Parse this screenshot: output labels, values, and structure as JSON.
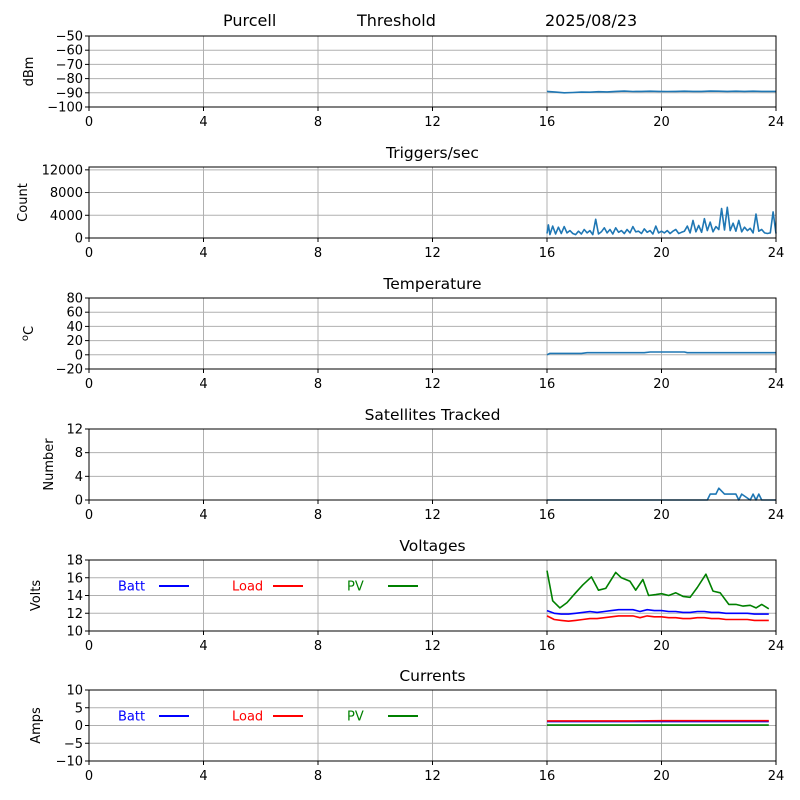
{
  "header": {
    "site": "Purcell",
    "label": "Threshold",
    "date": "2025/08/23"
  },
  "colors": {
    "default_series": "#1f77b4",
    "batt": "#0000ff",
    "load": "#ff0000",
    "pv": "#008000",
    "grid": "#b0b0b0"
  },
  "chart_data": [
    {
      "type": "line",
      "title": "",
      "xlabel": "",
      "ylabel": "dBm",
      "xlim": [
        0,
        24
      ],
      "xticks": [
        0,
        4,
        8,
        12,
        16,
        20,
        24
      ],
      "ylim": [
        -100,
        -50
      ],
      "yticks": [
        -100,
        -90,
        -80,
        -70,
        -60,
        -50
      ],
      "grid": true,
      "series": [
        {
          "color": "#1f77b4",
          "x": [
            16.0,
            16.3,
            16.6,
            16.9,
            17.2,
            17.5,
            17.8,
            18.1,
            18.4,
            18.7,
            19.0,
            19.3,
            19.6,
            19.9,
            20.2,
            20.5,
            20.8,
            21.1,
            21.4,
            21.7,
            22.0,
            22.3,
            22.6,
            22.9,
            23.2,
            23.5,
            23.8,
            24.0
          ],
          "y": [
            -89,
            -89.5,
            -90,
            -89.8,
            -89.5,
            -89.6,
            -89.2,
            -89.4,
            -89.0,
            -88.8,
            -89.1,
            -89.0,
            -88.9,
            -89.0,
            -89.1,
            -89.0,
            -88.9,
            -89.0,
            -89.0,
            -88.8,
            -88.9,
            -89.0,
            -88.9,
            -89.0,
            -88.9,
            -89.0,
            -89.0,
            -89.0
          ]
        }
      ]
    },
    {
      "type": "line",
      "title": "Triggers/sec",
      "xlabel": "",
      "ylabel": "Count",
      "xlim": [
        0,
        24
      ],
      "xticks": [
        0,
        4,
        8,
        12,
        16,
        20,
        24
      ],
      "ylim": [
        0,
        12500
      ],
      "yticks": [
        0,
        4000,
        8000,
        12000
      ],
      "grid": true,
      "series": [
        {
          "color": "#1f77b4",
          "x": [
            16.0,
            16.05,
            16.1,
            16.2,
            16.3,
            16.4,
            16.5,
            16.6,
            16.7,
            16.8,
            16.9,
            17.0,
            17.1,
            17.2,
            17.3,
            17.4,
            17.5,
            17.6,
            17.7,
            17.8,
            17.9,
            18.0,
            18.1,
            18.2,
            18.3,
            18.4,
            18.5,
            18.6,
            18.7,
            18.8,
            18.9,
            19.0,
            19.1,
            19.2,
            19.3,
            19.4,
            19.5,
            19.6,
            19.7,
            19.8,
            19.9,
            20.0,
            20.1,
            20.2,
            20.3,
            20.4,
            20.5,
            20.6,
            20.7,
            20.8,
            20.9,
            21.0,
            21.1,
            21.2,
            21.3,
            21.4,
            21.5,
            21.6,
            21.7,
            21.8,
            21.9,
            22.0,
            22.1,
            22.2,
            22.3,
            22.4,
            22.5,
            22.6,
            22.7,
            22.8,
            22.9,
            23.0,
            23.1,
            23.2,
            23.3,
            23.4,
            23.5,
            23.6,
            23.7,
            23.8,
            23.9,
            24.0
          ],
          "y": [
            800,
            2300,
            600,
            2100,
            700,
            1900,
            800,
            2000,
            900,
            1300,
            800,
            600,
            1200,
            700,
            1500,
            900,
            1300,
            600,
            3300,
            700,
            1100,
            1800,
            900,
            1500,
            700,
            1800,
            1000,
            1300,
            800,
            1500,
            900,
            2000,
            1100,
            1200,
            800,
            1600,
            1000,
            1300,
            700,
            2100,
            900,
            1200,
            900,
            1300,
            800,
            1200,
            1500,
            800,
            1000,
            1200,
            2100,
            900,
            3100,
            1100,
            2200,
            1000,
            3400,
            1300,
            2800,
            1100,
            2000,
            1500,
            5200,
            1400,
            5400,
            1300,
            2600,
            1200,
            3100,
            1100,
            1900,
            1300,
            1700,
            900,
            4200,
            1200,
            1500,
            900,
            800,
            900,
            4600,
            800
          ]
        }
      ]
    },
    {
      "type": "line",
      "title": "Temperature",
      "xlabel": "",
      "ylabel": "°C",
      "xlim": [
        0,
        24
      ],
      "xticks": [
        0,
        4,
        8,
        12,
        16,
        20,
        24
      ],
      "ylim": [
        -20,
        80
      ],
      "yticks": [
        -20,
        0,
        20,
        40,
        60,
        80
      ],
      "grid": true,
      "series": [
        {
          "color": "#1f77b4",
          "x": [
            16.0,
            16.1,
            16.2,
            16.8,
            17.2,
            17.4,
            18.0,
            18.8,
            19.4,
            19.6,
            20.2,
            20.8,
            20.9,
            21.5,
            22.5,
            23.5,
            24.0
          ],
          "y": [
            0,
            2,
            2,
            2,
            2,
            3,
            3,
            3,
            3,
            4,
            4,
            4,
            3,
            3,
            3,
            3,
            3
          ]
        }
      ]
    },
    {
      "type": "line",
      "title": "Satellites Tracked",
      "xlabel": "",
      "ylabel": "Number",
      "xlim": [
        0,
        24
      ],
      "xticks": [
        0,
        4,
        8,
        12,
        16,
        20,
        24
      ],
      "ylim": [
        0,
        12
      ],
      "yticks": [
        0,
        4,
        8,
        12
      ],
      "grid": true,
      "series": [
        {
          "color": "#1f77b4",
          "x": [
            16.0,
            16.1,
            21.6,
            21.7,
            21.9,
            22.0,
            22.2,
            22.6,
            22.7,
            22.8,
            23.1,
            23.2,
            23.3,
            23.4,
            23.5,
            24.0
          ],
          "y": [
            0,
            0,
            0,
            1,
            1,
            2,
            1,
            1,
            0,
            1,
            0,
            1,
            0,
            1,
            0,
            0
          ]
        }
      ]
    },
    {
      "type": "line",
      "title": "Voltages",
      "xlabel": "",
      "ylabel": "Volts",
      "xlim": [
        0,
        24
      ],
      "xticks": [
        0,
        4,
        8,
        12,
        16,
        20,
        24
      ],
      "ylim": [
        10,
        18
      ],
      "yticks": [
        10,
        12,
        14,
        16,
        18
      ],
      "grid": true,
      "legend": "inline-top-left",
      "series": [
        {
          "name": "Batt",
          "color": "#0000ff",
          "x": [
            16.0,
            16.25,
            16.5,
            16.75,
            17.0,
            17.25,
            17.5,
            17.75,
            18.0,
            18.25,
            18.5,
            18.75,
            19.0,
            19.25,
            19.5,
            19.75,
            20.0,
            20.25,
            20.5,
            20.75,
            21.0,
            21.25,
            21.5,
            21.75,
            22.0,
            22.25,
            22.5,
            22.75,
            23.0,
            23.25,
            23.5,
            23.75
          ],
          "y": [
            12.3,
            12.0,
            11.9,
            11.9,
            12.0,
            12.1,
            12.2,
            12.1,
            12.2,
            12.3,
            12.4,
            12.4,
            12.4,
            12.2,
            12.4,
            12.3,
            12.3,
            12.2,
            12.2,
            12.1,
            12.1,
            12.2,
            12.2,
            12.1,
            12.1,
            12.0,
            12.0,
            12.0,
            12.0,
            11.9,
            11.9,
            11.9
          ]
        },
        {
          "name": "Load",
          "color": "#ff0000",
          "x": [
            16.0,
            16.25,
            16.5,
            16.75,
            17.0,
            17.25,
            17.5,
            17.75,
            18.0,
            18.25,
            18.5,
            18.75,
            19.0,
            19.25,
            19.5,
            19.75,
            20.0,
            20.25,
            20.5,
            20.75,
            21.0,
            21.25,
            21.5,
            21.75,
            22.0,
            22.25,
            22.5,
            22.75,
            23.0,
            23.25,
            23.5,
            23.75
          ],
          "y": [
            11.7,
            11.3,
            11.2,
            11.1,
            11.2,
            11.3,
            11.4,
            11.4,
            11.5,
            11.6,
            11.7,
            11.7,
            11.7,
            11.5,
            11.7,
            11.6,
            11.6,
            11.5,
            11.5,
            11.4,
            11.4,
            11.5,
            11.5,
            11.4,
            11.4,
            11.3,
            11.3,
            11.3,
            11.3,
            11.2,
            11.2,
            11.2
          ]
        },
        {
          "name": "PV",
          "color": "#008000",
          "x": [
            16.0,
            16.2,
            16.45,
            16.7,
            17.0,
            17.25,
            17.55,
            17.8,
            18.05,
            18.4,
            18.6,
            18.9,
            19.1,
            19.35,
            19.55,
            19.8,
            20.0,
            20.25,
            20.5,
            20.75,
            21.0,
            21.25,
            21.55,
            21.8,
            22.05,
            22.35,
            22.6,
            22.85,
            23.1,
            23.3,
            23.5,
            23.75
          ],
          "y": [
            16.8,
            13.4,
            12.6,
            13.2,
            14.3,
            15.2,
            16.1,
            14.6,
            14.8,
            16.6,
            16.0,
            15.6,
            14.6,
            15.8,
            14.0,
            14.1,
            14.2,
            14.0,
            14.3,
            13.9,
            13.8,
            14.9,
            16.4,
            14.5,
            14.3,
            13.0,
            13.0,
            12.8,
            12.9,
            12.6,
            13.0,
            12.5
          ]
        }
      ]
    },
    {
      "type": "line",
      "title": "Currents",
      "xlabel": "",
      "ylabel": "Amps",
      "xlim": [
        0,
        24
      ],
      "xticks": [
        0,
        4,
        8,
        12,
        16,
        20,
        24
      ],
      "ylim": [
        -10,
        10
      ],
      "yticks": [
        -10,
        -5,
        0,
        5,
        10
      ],
      "grid": true,
      "legend": "inline-top-left",
      "series": [
        {
          "name": "Batt",
          "color": "#0000ff",
          "x": [
            16.0,
            17.0,
            18.0,
            19.0,
            20.0,
            21.0,
            22.0,
            23.0,
            23.75
          ],
          "y": [
            1.1,
            1.1,
            1.1,
            1.1,
            1.1,
            1.1,
            1.1,
            1.1,
            1.1
          ]
        },
        {
          "name": "Load",
          "color": "#ff0000",
          "x": [
            16.0,
            17.0,
            18.0,
            19.0,
            20.0,
            21.0,
            22.0,
            23.0,
            23.75
          ],
          "y": [
            1.3,
            1.3,
            1.3,
            1.3,
            1.35,
            1.35,
            1.35,
            1.35,
            1.35
          ]
        },
        {
          "name": "PV",
          "color": "#008000",
          "x": [
            16.0,
            17.0,
            18.0,
            19.0,
            20.0,
            21.0,
            22.0,
            23.0,
            23.75
          ],
          "y": [
            0.1,
            0.1,
            0.1,
            0.1,
            0.1,
            0.1,
            0.1,
            0.1,
            0.1
          ]
        }
      ]
    }
  ]
}
